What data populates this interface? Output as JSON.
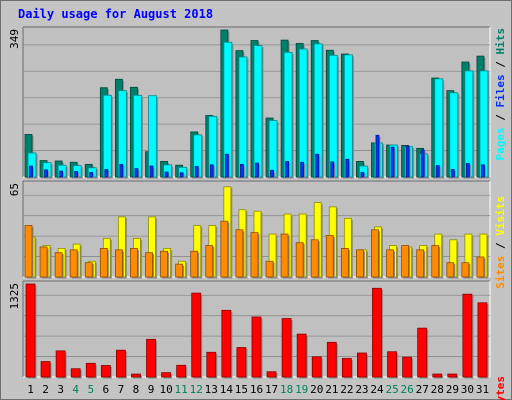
{
  "colors": {
    "hits": "#00f8ff",
    "files": "#0033ff",
    "pages": "#00806b",
    "visits": "#ffff00",
    "sites": "#ff8c00",
    "kbytes": "#ff0000",
    "title": "#0000ff",
    "weekend_label": "#00805c",
    "panel_bg": "#c0c0c0",
    "grid": "#8a8a8a"
  },
  "chart_data": [
    {
      "type": "bar",
      "title": "Daily usage for August 2018",
      "categories": [
        "1",
        "2",
        "3",
        "4",
        "5",
        "6",
        "7",
        "8",
        "9",
        "10",
        "11",
        "12",
        "13",
        "14",
        "15",
        "16",
        "17",
        "18",
        "19",
        "20",
        "21",
        "22",
        "23",
        "24",
        "25",
        "26",
        "27",
        "28",
        "29",
        "30",
        "31"
      ],
      "weekend_days": [
        "4",
        "5",
        "11",
        "12",
        "18",
        "19",
        "25",
        "26"
      ],
      "y_tick_label": "349",
      "ylim": [
        0,
        349
      ],
      "legend": [
        "Pages",
        "Files",
        "Hits"
      ],
      "series": [
        {
          "name": "Pages",
          "values": [
            101,
            39,
            38,
            35,
            30,
            212,
            232,
            213,
            60,
            37,
            28,
            107,
            146,
            349,
            300,
            324,
            140,
            325,
            317,
            324,
            301,
            292,
            37,
            81,
            76,
            75,
            68,
            235,
            205,
            273,
            287
          ]
        },
        {
          "name": "Files",
          "values": [
            26,
            17,
            14,
            13,
            11,
            18,
            30,
            20,
            26,
            12,
            10,
            25,
            29,
            54,
            30,
            33,
            16,
            37,
            35,
            54,
            36,
            42,
            11,
            99,
            71,
            73,
            64,
            27,
            18,
            32,
            29
          ]
        },
        {
          "name": "Hits",
          "values": [
            57,
            34,
            28,
            27,
            22,
            194,
            205,
            194,
            193,
            29,
            23,
            100,
            144,
            320,
            285,
            312,
            134,
            296,
            304,
            316,
            289,
            290,
            26,
            81,
            76,
            72,
            55,
            233,
            200,
            252,
            252
          ]
        }
      ]
    },
    {
      "type": "bar",
      "categories": [
        "1",
        "2",
        "3",
        "4",
        "5",
        "6",
        "7",
        "8",
        "9",
        "10",
        "11",
        "12",
        "13",
        "14",
        "15",
        "16",
        "17",
        "18",
        "19",
        "20",
        "21",
        "22",
        "23",
        "24",
        "25",
        "26",
        "27",
        "28",
        "29",
        "30",
        "31"
      ],
      "y_tick_label": "65",
      "ylim": [
        0,
        65
      ],
      "legend": [
        "Sites",
        "Visits"
      ],
      "series": [
        {
          "name": "Visits",
          "values": [
            28,
            22,
            20,
            23,
            11,
            27,
            42,
            27,
            42,
            20,
            11,
            36,
            36,
            63,
            47,
            46,
            30,
            44,
            44,
            52,
            49,
            41,
            19,
            35,
            22,
            21,
            22,
            30,
            26,
            30,
            30
          ]
        },
        {
          "name": "Sites",
          "values": [
            36,
            21,
            17,
            19,
            10,
            20,
            19,
            20,
            17,
            18,
            9,
            18,
            22,
            39,
            33,
            31,
            11,
            30,
            24,
            26,
            29,
            20,
            19,
            33,
            19,
            22,
            19,
            22,
            10,
            10,
            14
          ]
        }
      ]
    },
    {
      "type": "bar",
      "categories": [
        "1",
        "2",
        "3",
        "4",
        "5",
        "6",
        "7",
        "8",
        "9",
        "10",
        "11",
        "12",
        "13",
        "14",
        "15",
        "16",
        "17",
        "18",
        "19",
        "20",
        "21",
        "22",
        "23",
        "24",
        "25",
        "26",
        "27",
        "28",
        "29",
        "30",
        "31"
      ],
      "y_tick_label": "1325",
      "ylim": [
        0,
        1325
      ],
      "legend": [
        "KBytes"
      ],
      "series": [
        {
          "name": "KBytes",
          "values": [
            1325,
            220,
            372,
            118,
            195,
            164,
            382,
            42,
            537,
            62,
            167,
            1195,
            352,
            950,
            420,
            855,
            75,
            833,
            611,
            288,
            494,
            264,
            342,
            1264,
            360,
            283,
            696,
            42,
            42,
            1180,
            1057
          ]
        }
      ]
    }
  ]
}
